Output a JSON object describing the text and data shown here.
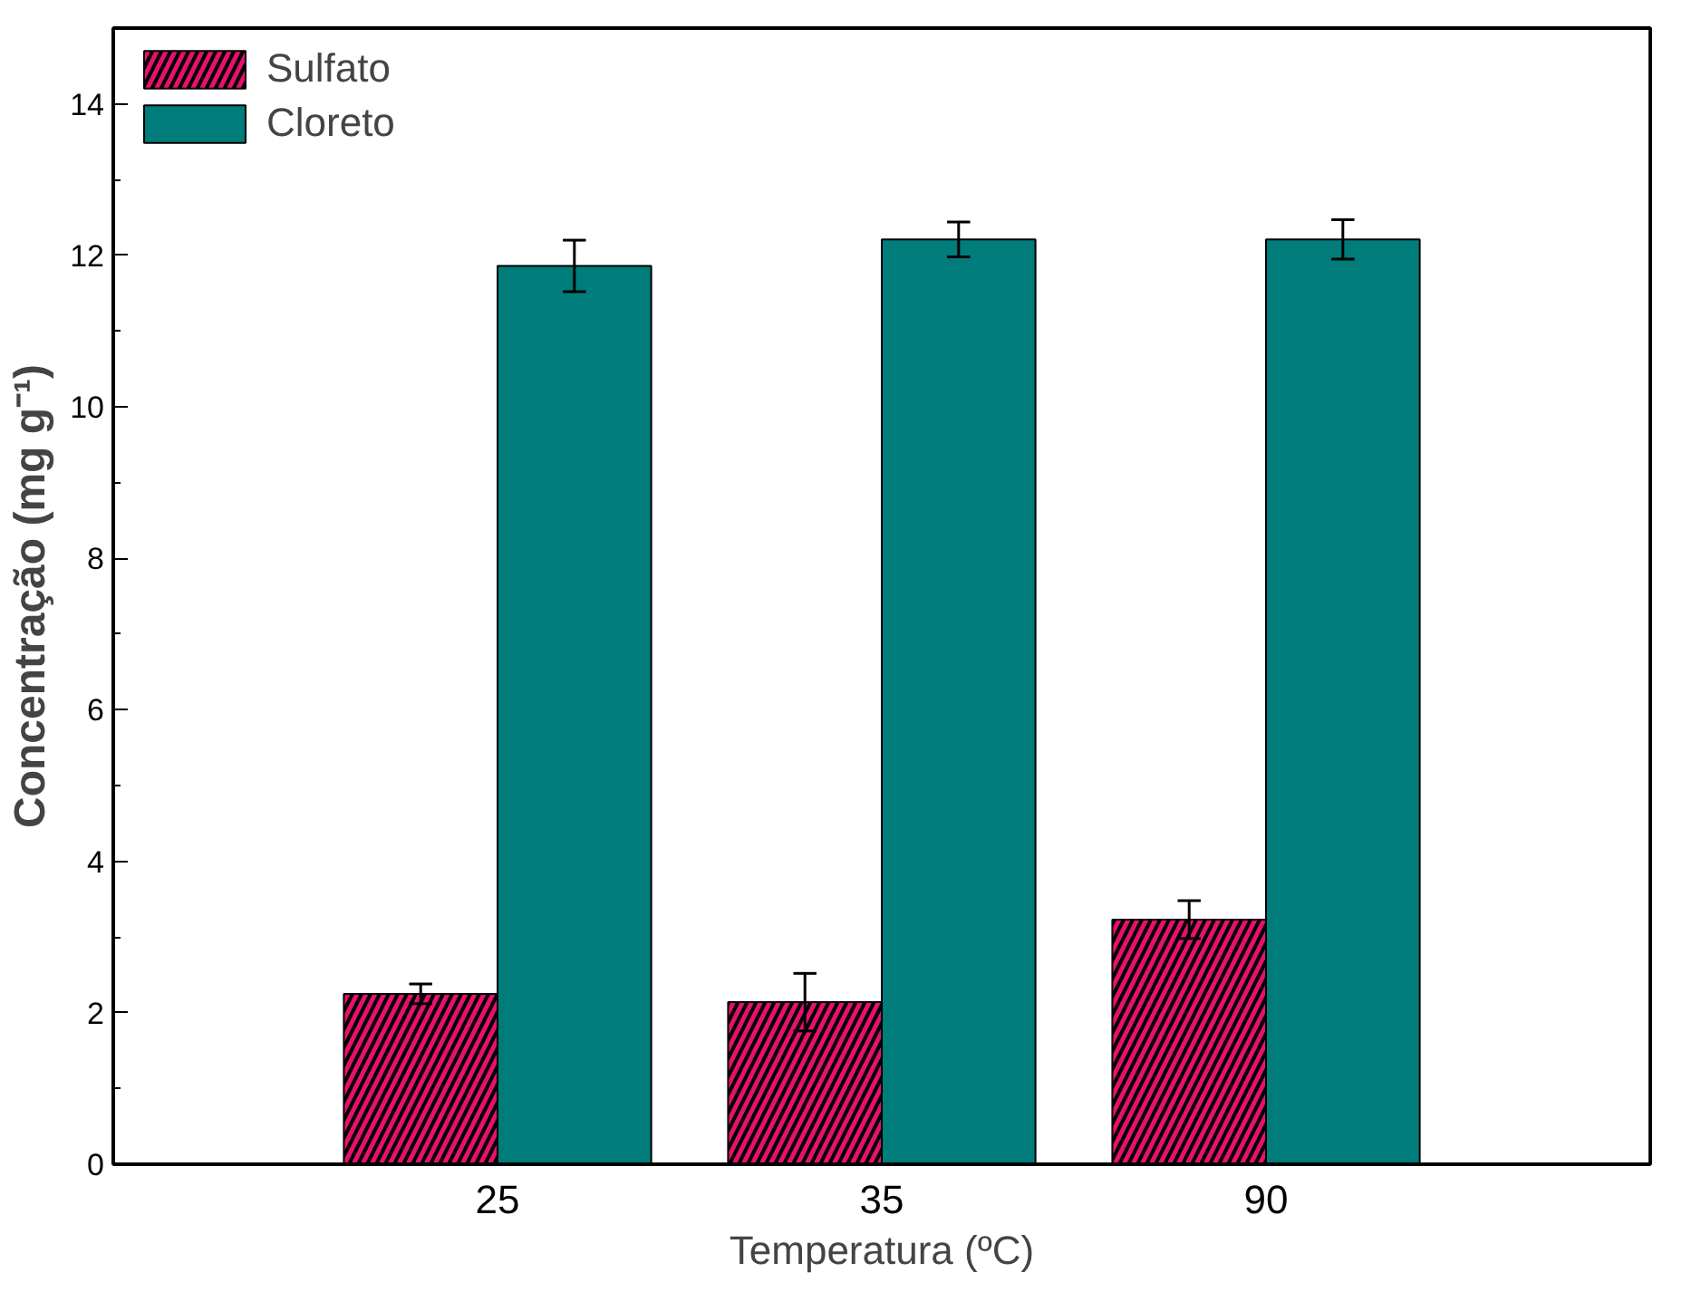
{
  "chart_data": {
    "type": "bar",
    "xlabel": "Temperatura (ºC)",
    "ylabel": "Concentração (mg g⁻¹)",
    "categories": [
      "25",
      "35",
      "90"
    ],
    "series": [
      {
        "name": "Sulfato",
        "color": "#e8106e",
        "values": [
          2.25,
          2.14,
          3.23
        ],
        "errors": [
          0.13,
          0.38,
          0.25
        ]
      },
      {
        "name": "Cloreto",
        "color": "#007c7a",
        "values": [
          11.86,
          12.21,
          12.21
        ],
        "errors": [
          0.34,
          0.23,
          0.26
        ]
      }
    ],
    "ylim": [
      0,
      15
    ],
    "yticks": [
      0,
      2,
      4,
      6,
      8,
      10,
      12,
      14
    ],
    "grid": false,
    "legend": "top left"
  }
}
